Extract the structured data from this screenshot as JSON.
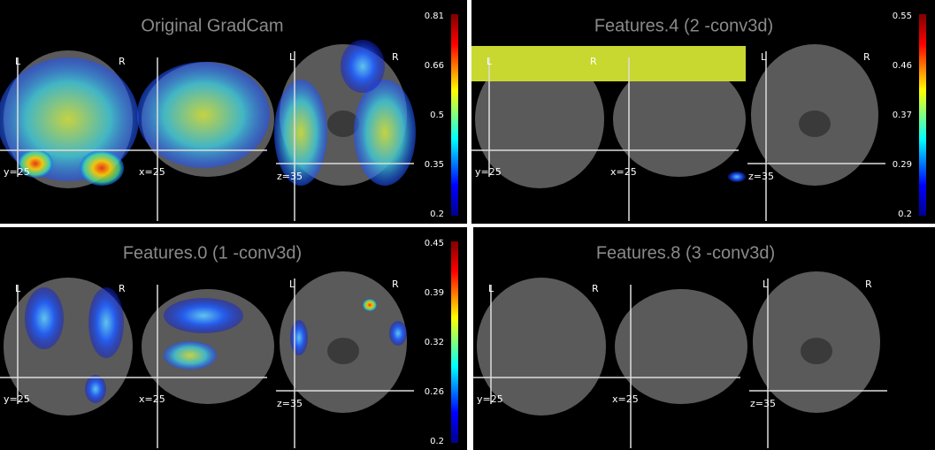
{
  "panels": [
    {
      "title": "Original GradCam",
      "colorbar": [
        0.81,
        0.66,
        0.5,
        0.35,
        0.2
      ],
      "coronal": {
        "left": "L",
        "right": "R",
        "coord": "y=25"
      },
      "sagittal": {
        "coord": "x=25"
      },
      "axial": {
        "left": "L",
        "right": "R",
        "coord": "z=35"
      }
    },
    {
      "title": "Features.4 (2 -conv3d)",
      "colorbar": [
        0.55,
        0.46,
        0.37,
        0.29,
        0.2
      ],
      "coronal": {
        "left": "L",
        "right": "R",
        "coord": "y=25"
      },
      "sagittal": {
        "coord": "x=25"
      },
      "axial": {
        "left": "L",
        "right": "R",
        "coord": "z=35"
      }
    },
    {
      "title": "Features.0 (1 -conv3d)",
      "colorbar": [
        0.45,
        0.39,
        0.32,
        0.26,
        0.2
      ],
      "coronal": {
        "left": "L",
        "right": "R",
        "coord": "y=25"
      },
      "sagittal": {
        "coord": "x=25"
      },
      "axial": {
        "left": "L",
        "right": "R",
        "coord": "z=35"
      }
    },
    {
      "title": "Features.8 (3 -conv3d)",
      "coronal": {
        "left": "L",
        "right": "R",
        "coord": "y=25"
      },
      "sagittal": {
        "coord": "x=25"
      },
      "axial": {
        "left": "L",
        "right": "R",
        "coord": "z=35"
      }
    }
  ]
}
